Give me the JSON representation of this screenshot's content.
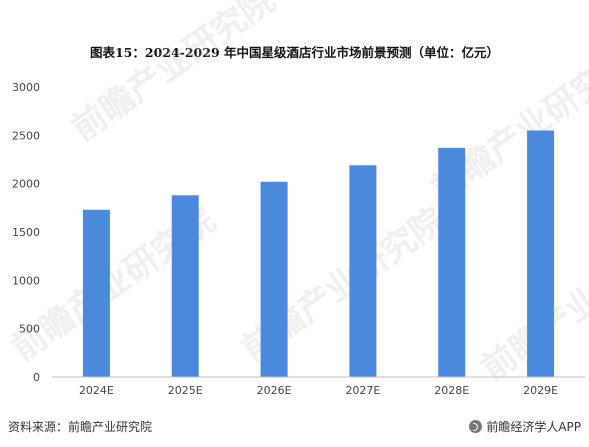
{
  "title": "图表15：2024-2029 年中国星级酒店行业市场前景预测（单位：亿元）",
  "footer": {
    "source": "资料来源：前瞻产业研究院",
    "brand": "前瞻经济学人APP"
  },
  "watermark": "前瞻产业研究院",
  "colors": {
    "bar": "#4a89dc",
    "axis": "#bfbfbf",
    "tick_text": "#444444"
  },
  "chart_data": {
    "type": "bar",
    "categories": [
      "2024E",
      "2025E",
      "2026E",
      "2027E",
      "2028E",
      "2029E"
    ],
    "values": [
      1730,
      1880,
      2020,
      2190,
      2370,
      2550
    ],
    "title": "图表15：2024-2029 年中国星级酒店行业市场前景预测（单位：亿元）",
    "xlabel": "",
    "ylabel": "",
    "ylim": [
      0,
      3000
    ],
    "yticks": [
      0,
      500,
      1000,
      1500,
      2000,
      2500,
      3000
    ],
    "grid": false,
    "legend": "none"
  }
}
